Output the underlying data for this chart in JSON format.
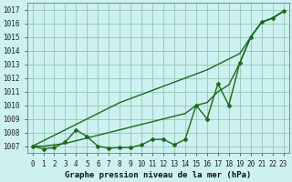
{
  "title": "Graphe pression niveau de la mer (hPa)",
  "background_color": "#cdf0f0",
  "grid_color": "#99ccbb",
  "line_color": "#1a6b1a",
  "x_labels": [
    "0",
    "1",
    "2",
    "3",
    "4",
    "5",
    "6",
    "7",
    "8",
    "9",
    "10",
    "11",
    "12",
    "13",
    "14",
    "15",
    "16",
    "17",
    "18",
    "19",
    "20",
    "21",
    "22",
    "23"
  ],
  "ylim": [
    1006.5,
    1017.5
  ],
  "yticks": [
    1007,
    1008,
    1009,
    1010,
    1011,
    1012,
    1013,
    1014,
    1015,
    1016,
    1017
  ],
  "p_main": [
    1007.0,
    1006.8,
    1006.9,
    1007.3,
    1008.2,
    1007.7,
    1007.0,
    1006.85,
    1006.9,
    1006.9,
    1007.1,
    1007.5,
    1007.5,
    1007.1,
    1007.5,
    1010.0,
    1009.0,
    1011.6,
    1010.0,
    1013.1,
    1015.0,
    1016.1,
    1016.4,
    1016.9
  ],
  "p_high": [
    1007.0,
    1007.4,
    1007.8,
    1008.2,
    1008.6,
    1009.0,
    1009.4,
    1009.8,
    1010.2,
    1010.5,
    1010.8,
    1011.1,
    1011.4,
    1011.7,
    1012.0,
    1012.3,
    1012.6,
    1013.0,
    1013.4,
    1013.8,
    1015.0,
    1016.1,
    1016.4,
    1016.9
  ],
  "p_low": [
    1007.0,
    1007.0,
    1007.1,
    1007.2,
    1007.4,
    1007.6,
    1007.8,
    1008.0,
    1008.2,
    1008.4,
    1008.6,
    1008.8,
    1009.0,
    1009.2,
    1009.4,
    1010.0,
    1010.2,
    1011.0,
    1011.5,
    1013.1,
    1015.0,
    1016.1,
    1016.4,
    1016.9
  ],
  "title_fontsize": 6.5,
  "tick_fontsize": 5.5
}
